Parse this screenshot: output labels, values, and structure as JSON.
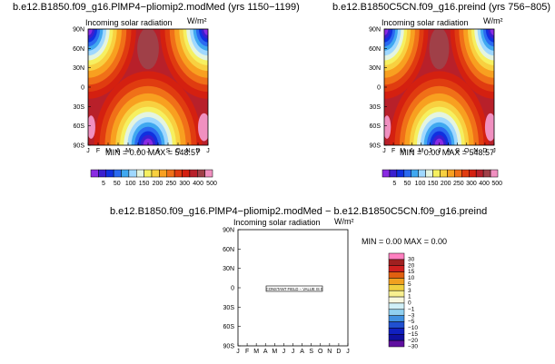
{
  "chart_data": [
    {
      "type": "heatmap",
      "title": "b.e12.B1850.f09_g16.PlMP4−pliomip2.modMed (yrs 1150−1199)",
      "subtitle": "Incoming solar radiation",
      "units": "W/m²",
      "stats": "MIN =    0.00 MAX =  548.57",
      "x_ticks": [
        "J",
        "F",
        "M",
        "A",
        "M",
        "J",
        "J",
        "A",
        "S",
        "O",
        "N",
        "D",
        "J"
      ],
      "y_ticks": [
        "90N",
        "60N",
        "30N",
        "0",
        "30S",
        "60S",
        "90S"
      ],
      "colorbar_labels": [
        "5",
        "50",
        "100",
        "150",
        "200",
        "250",
        "300",
        "400",
        "500"
      ],
      "xlim": [
        0,
        12
      ],
      "ylim": [
        -90,
        90
      ],
      "min": 0.0,
      "max": 548.57
    },
    {
      "type": "heatmap",
      "title": "b.e12.B1850C5CN.f09_g16.preind (yrs 756−805)",
      "subtitle": "Incoming solar radiation",
      "units": "W/m²",
      "stats": "MIN =    0.00 MAX =  548.57",
      "x_ticks": [
        "J",
        "F",
        "M",
        "A",
        "M",
        "J",
        "J",
        "A",
        "S",
        "O",
        "N",
        "D",
        "J"
      ],
      "y_ticks": [
        "90N",
        "60N",
        "30N",
        "0",
        "30S",
        "60S",
        "90S"
      ],
      "colorbar_labels": [
        "5",
        "50",
        "100",
        "150",
        "200",
        "250",
        "300",
        "400",
        "500"
      ],
      "xlim": [
        0,
        12
      ],
      "ylim": [
        -90,
        90
      ],
      "min": 0.0,
      "max": 548.57
    },
    {
      "type": "heatmap",
      "title": "b.e12.B1850.f09_g16.PlMP4−pliomip2.modMed − b.e12.B1850C5CN.f09_g16.preind",
      "subtitle": "Incoming solar radiation",
      "units": "W/m²",
      "stats": "MIN =    0.00 MAX =    0.00",
      "annotation": "CONSTANT FIELD − VALUE IS  0",
      "x_ticks": [
        "J",
        "F",
        "M",
        "A",
        "M",
        "J",
        "J",
        "A",
        "S",
        "O",
        "N",
        "D",
        "J"
      ],
      "y_ticks": [
        "90N",
        "60N",
        "30N",
        "0",
        "30S",
        "60S",
        "90S"
      ],
      "colorbar_labels": [
        "30",
        "20",
        "15",
        "10",
        "5",
        "3",
        "1",
        "0",
        "−1",
        "−3",
        "−5",
        "−10",
        "−15",
        "−20",
        "−30"
      ],
      "xlim": [
        0,
        12
      ],
      "ylim": [
        -90,
        90
      ],
      "min": 0.0,
      "max": 0.0
    }
  ],
  "colors": {
    "abs_palette": [
      "#8a2be2",
      "#3a1fd0",
      "#1030e0",
      "#2a6af0",
      "#40a8f0",
      "#9fd8ff",
      "#e4f4e0",
      "#f6f060",
      "#f8d040",
      "#f8a020",
      "#f07018",
      "#e03c10",
      "#d42010",
      "#b8202a",
      "#a04048",
      "#f090c0"
    ],
    "diff_palette": [
      "#ff80c0",
      "#a02020",
      "#d02020",
      "#e06010",
      "#f0a020",
      "#f0d040",
      "#f8f090",
      "#f8f8e0",
      "#d0f0f8",
      "#90d0f0",
      "#4090e0",
      "#2050d0",
      "#1020c0",
      "#1010a0",
      "#6010a0"
    ]
  }
}
